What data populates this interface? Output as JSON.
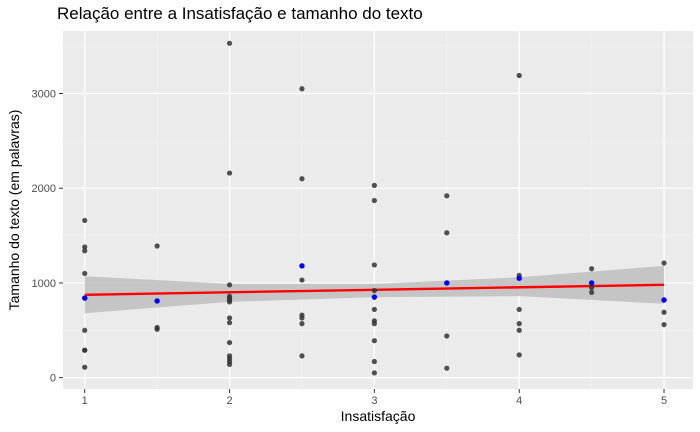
{
  "chart_data": {
    "type": "scatter",
    "title": "Relação entre a Insatisfação e tamanho do texto",
    "xlabel": "Insatisfação",
    "ylabel": "Tamanho do texto (em palavras)",
    "xlim": [
      0.85,
      5.2
    ],
    "ylim": [
      -120,
      3660
    ],
    "x_ticks": [
      1,
      2,
      3,
      4,
      5
    ],
    "y_ticks": [
      0,
      1000,
      2000,
      3000
    ],
    "grid": true,
    "legend": "none",
    "series": [
      {
        "role": "observations",
        "color": "#333333",
        "points": [
          [
            1,
            1660
          ],
          [
            1,
            1380
          ],
          [
            1,
            1340
          ],
          [
            1,
            1100
          ],
          [
            1,
            500
          ],
          [
            1,
            290
          ],
          [
            1,
            290
          ],
          [
            1,
            110
          ],
          [
            1.5,
            1390
          ],
          [
            1.5,
            530
          ],
          [
            1.5,
            510
          ],
          [
            2,
            3530
          ],
          [
            2,
            2160
          ],
          [
            2,
            980
          ],
          [
            2,
            860
          ],
          [
            2,
            840
          ],
          [
            2,
            820
          ],
          [
            2,
            800
          ],
          [
            2,
            630
          ],
          [
            2,
            580
          ],
          [
            2,
            370
          ],
          [
            2,
            230
          ],
          [
            2,
            200
          ],
          [
            2,
            170
          ],
          [
            2,
            140
          ],
          [
            2.5,
            3050
          ],
          [
            2.5,
            2100
          ],
          [
            2.5,
            1030
          ],
          [
            2.5,
            660
          ],
          [
            2.5,
            630
          ],
          [
            2.5,
            570
          ],
          [
            2.5,
            230
          ],
          [
            3,
            2030
          ],
          [
            3,
            1870
          ],
          [
            3,
            1190
          ],
          [
            3,
            920
          ],
          [
            3,
            720
          ],
          [
            3,
            600
          ],
          [
            3,
            570
          ],
          [
            3,
            390
          ],
          [
            3,
            170
          ],
          [
            3,
            50
          ],
          [
            3.5,
            1920
          ],
          [
            3.5,
            1530
          ],
          [
            3.5,
            440
          ],
          [
            3.5,
            100
          ],
          [
            4,
            3190
          ],
          [
            4,
            1080
          ],
          [
            4,
            1050
          ],
          [
            4,
            720
          ],
          [
            4,
            570
          ],
          [
            4,
            500
          ],
          [
            4,
            240
          ],
          [
            4.5,
            1150
          ],
          [
            4.5,
            950
          ],
          [
            4.5,
            900
          ],
          [
            5,
            1210
          ],
          [
            5,
            690
          ],
          [
            5,
            560
          ]
        ]
      },
      {
        "role": "group means",
        "color": "#0000ff",
        "points": [
          [
            1,
            840
          ],
          [
            1.5,
            810
          ],
          [
            2.5,
            1180
          ],
          [
            3,
            850
          ],
          [
            3.5,
            1000
          ],
          [
            4,
            1050
          ],
          [
            4.5,
            1000
          ],
          [
            5,
            820
          ]
        ]
      }
    ],
    "regression_line": {
      "color": "#ff0000",
      "points": [
        [
          1,
          875
        ],
        [
          5,
          980
        ]
      ]
    },
    "confidence_band": {
      "color": "#bebebe",
      "upper": [
        [
          1,
          1070
        ],
        [
          2,
          990
        ],
        [
          3,
          990
        ],
        [
          4,
          1060
        ],
        [
          5,
          1180
        ]
      ],
      "lower": [
        [
          1,
          680
        ],
        [
          2,
          800
        ],
        [
          3,
          850
        ],
        [
          4,
          860
        ],
        [
          5,
          780
        ]
      ]
    }
  }
}
